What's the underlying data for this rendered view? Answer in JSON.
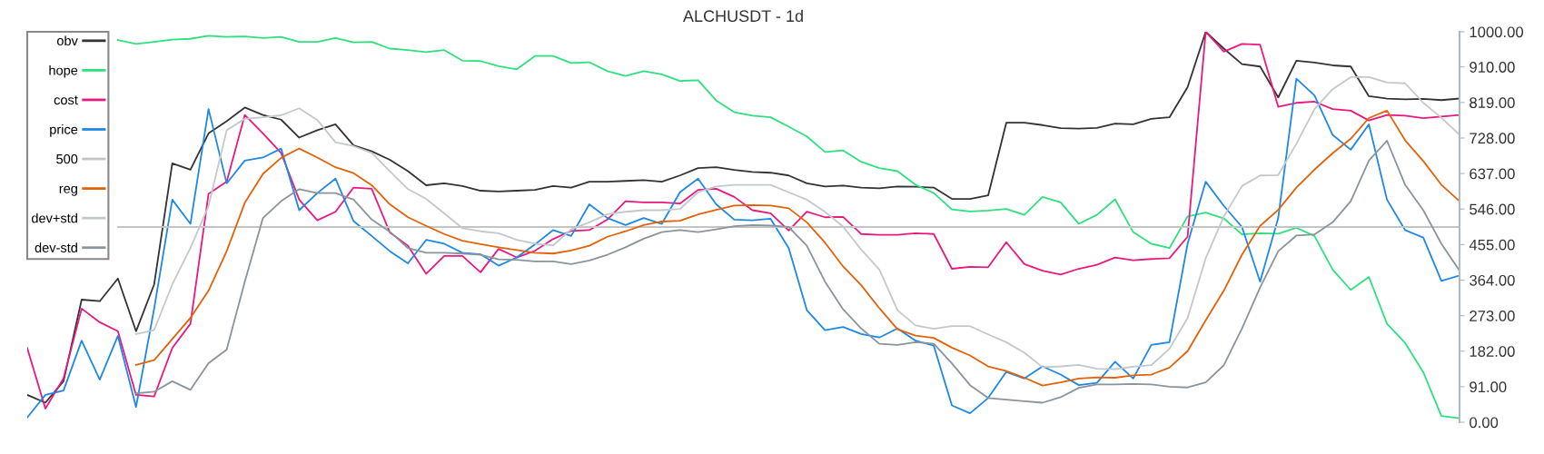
{
  "chart_data": {
    "type": "line",
    "title": "ALCHUSDT - 1d",
    "categories": [
      null,
      null,
      null,
      null,
      null,
      null,
      null,
      null,
      null,
      null,
      null,
      null,
      null,
      null,
      null,
      null,
      null,
      null,
      null,
      null,
      null,
      null,
      null,
      null,
      null,
      null,
      null,
      null,
      null,
      null,
      null,
      null,
      null,
      null,
      null,
      null,
      null,
      null,
      null,
      null,
      null,
      null,
      null,
      null,
      null,
      null,
      null,
      null,
      null,
      null,
      null,
      null,
      null,
      null,
      null,
      null,
      null,
      null,
      null,
      null,
      null,
      null,
      null,
      null,
      null,
      null,
      null,
      null,
      null,
      null,
      null,
      null,
      null,
      null,
      null,
      null,
      null,
      null,
      null,
      null
    ],
    "ylim": [
      0,
      1000
    ],
    "yticks": [
      {
        "value": 0,
        "label": "0.00"
      },
      {
        "value": 91,
        "label": "91.00"
      },
      {
        "value": 182,
        "label": "182.00"
      },
      {
        "value": 273,
        "label": "273.00"
      },
      {
        "value": 364,
        "label": "364.00"
      },
      {
        "value": 455,
        "label": "455.00"
      },
      {
        "value": 546,
        "label": "546.00"
      },
      {
        "value": 637,
        "label": "637.00"
      },
      {
        "value": 728,
        "label": "728.00"
      },
      {
        "value": 819,
        "label": "819.00"
      },
      {
        "value": 910,
        "label": "910.00"
      },
      {
        "value": 1000,
        "label": "1000.00"
      }
    ],
    "tick_labels": "y",
    "legend": "top left",
    "marker": "none",
    "line_style": "solid",
    "series": [
      {
        "name": "obv",
        "color": "#333333",
        "values": [
          70,
          50,
          105,
          314,
          310,
          368,
          233,
          353,
          663,
          647,
          740,
          771,
          806,
          787,
          775,
          729,
          748,
          763,
          709,
          694,
          672,
          643,
          607,
          612,
          605,
          593,
          591,
          593,
          595,
          605,
          601,
          616,
          616,
          618,
          620,
          616,
          632,
          651,
          653,
          646,
          641,
          639,
          632,
          612,
          604,
          606,
          601,
          599,
          604,
          603,
          601,
          572,
          572,
          581,
          767,
          767,
          761,
          753,
          752,
          754,
          765,
          763,
          777,
          781,
          858,
          1000,
          957,
          917,
          911,
          832,
          926,
          921,
          914,
          911,
          835,
          829,
          827,
          828,
          825,
          829
        ]
      },
      {
        "name": "hope",
        "color": "#2fe07f",
        "values": [
          null,
          null,
          null,
          null,
          null,
          979,
          969,
          974,
          980,
          982,
          990,
          987,
          988,
          984,
          987,
          974,
          974,
          984,
          973,
          974,
          957,
          953,
          948,
          953,
          926,
          925,
          912,
          904,
          938,
          938,
          920,
          922,
          899,
          887,
          899,
          891,
          874,
          876,
          824,
          794,
          785,
          781,
          757,
          732,
          692,
          696,
          667,
          651,
          643,
          608,
          587,
          545,
          540,
          542,
          546,
          531,
          577,
          563,
          508,
          531,
          571,
          487,
          457,
          446,
          527,
          537,
          522,
          481,
          484,
          483,
          498,
          477,
          391,
          339,
          372,
          252,
          203,
          128,
          16,
          10
        ]
      },
      {
        "name": "cost",
        "color": "#e8197f",
        "values": [
          190,
          35,
          112,
          291,
          256,
          233,
          70,
          66,
          190,
          252,
          585,
          616,
          787,
          740,
          690,
          570,
          517,
          539,
          601,
          598,
          486,
          452,
          380,
          426,
          426,
          384,
          444,
          422,
          439,
          469,
          490,
          492,
          519,
          566,
          563,
          563,
          560,
          595,
          598,
          577,
          543,
          535,
          491,
          539,
          525,
          526,
          482,
          480,
          480,
          484,
          482,
          393,
          398,
          397,
          461,
          405,
          388,
          378,
          393,
          403,
          422,
          415,
          418,
          420,
          475,
          1000,
          949,
          969,
          967,
          808,
          818,
          821,
          802,
          798,
          773,
          787,
          785,
          779,
          783,
          787
        ]
      },
      {
        "name": "price",
        "color": "#1e88e5",
        "values": [
          12,
          70,
          81,
          209,
          109,
          221,
          39,
          291,
          570,
          508,
          802,
          612,
          670,
          678,
          701,
          543,
          587,
          624,
          515,
          477,
          438,
          407,
          467,
          457,
          434,
          430,
          401,
          422,
          455,
          492,
          477,
          558,
          523,
          505,
          523,
          508,
          589,
          624,
          558,
          519,
          517,
          521,
          446,
          287,
          236,
          244,
          226,
          217,
          240,
          209,
          196,
          43,
          23,
          62,
          129,
          112,
          143,
          122,
          95,
          101,
          155,
          112,
          198,
          205,
          457,
          616,
          554,
          500,
          360,
          523,
          880,
          837,
          736,
          698,
          763,
          570,
          492,
          473,
          362,
          376
        ]
      },
      {
        "name": "500",
        "color": "#c4c4c4",
        "values": [
          null,
          null,
          null,
          null,
          null,
          500,
          500,
          500,
          500,
          500,
          500,
          500,
          500,
          500,
          500,
          500,
          500,
          500,
          500,
          500,
          500,
          500,
          500,
          500,
          500,
          500,
          500,
          500,
          500,
          500,
          500,
          500,
          500,
          500,
          500,
          500,
          500,
          500,
          500,
          500,
          500,
          500,
          500,
          500,
          500,
          500,
          500,
          500,
          500,
          500,
          500,
          500,
          500,
          500,
          500,
          500,
          500,
          500,
          500,
          500,
          500,
          500,
          500,
          500,
          500,
          500,
          500,
          500,
          500,
          500,
          500,
          500,
          500,
          500,
          500,
          500,
          500,
          500,
          500,
          500
        ]
      },
      {
        "name": "reg",
        "color": "#e36209",
        "values": [
          null,
          null,
          null,
          null,
          null,
          null,
          147,
          159,
          213,
          267,
          337,
          438,
          562,
          636,
          677,
          701,
          678,
          653,
          638,
          607,
          558,
          525,
          503,
          482,
          465,
          456,
          448,
          441,
          434,
          432,
          440,
          452,
          475,
          489,
          505,
          514,
          516,
          532,
          544,
          555,
          556,
          555,
          548,
          512,
          460,
          399,
          351,
          292,
          238,
          222,
          216,
          191,
          171,
          143,
          131,
          114,
          94,
          102,
          112,
          115,
          114,
          120,
          122,
          140,
          182,
          261,
          337,
          429,
          503,
          544,
          601,
          647,
          689,
          726,
          779,
          798,
          722,
          669,
          608,
          566
        ]
      },
      {
        "name": "dev+std",
        "color": "#c3c8cd",
        "values": [
          null,
          null,
          null,
          null,
          null,
          null,
          226,
          236,
          353,
          446,
          554,
          748,
          777,
          781,
          786,
          804,
          774,
          717,
          707,
          690,
          643,
          597,
          572,
          535,
          497,
          489,
          484,
          467,
          457,
          453,
          494,
          512,
          533,
          539,
          543,
          543,
          546,
          589,
          604,
          608,
          608,
          608,
          589,
          570,
          539,
          501,
          442,
          391,
          287,
          248,
          239,
          246,
          246,
          225,
          205,
          178,
          141,
          143,
          147,
          137,
          136,
          142,
          146,
          188,
          267,
          420,
          527,
          605,
          632,
          633,
          713,
          802,
          853,
          884,
          884,
          870,
          868,
          818,
          780,
          736
        ]
      },
      {
        "name": "dev-std",
        "color": "#8a949c",
        "values": [
          null,
          null,
          null,
          null,
          null,
          null,
          74,
          78,
          105,
          83,
          151,
          186,
          360,
          523,
          566,
          597,
          587,
          587,
          570,
          519,
          488,
          446,
          434,
          434,
          432,
          429,
          417,
          416,
          412,
          412,
          405,
          414,
          429,
          448,
          470,
          487,
          492,
          487,
          494,
          502,
          505,
          504,
          500,
          452,
          360,
          289,
          240,
          201,
          198,
          205,
          201,
          151,
          95,
          62,
          58,
          54,
          50,
          64,
          88,
          97,
          97,
          98,
          97,
          91,
          89,
          102,
          146,
          240,
          345,
          438,
          478,
          481,
          512,
          566,
          670,
          721,
          608,
          543,
          457,
          388
        ]
      }
    ]
  }
}
